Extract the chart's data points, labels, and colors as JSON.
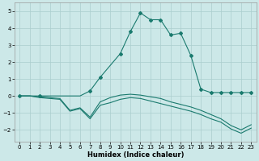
{
  "title": "",
  "xlabel": "Humidex (Indice chaleur)",
  "bg_color": "#cce8e8",
  "grid_color": "#aacece",
  "line_color": "#1a7a6e",
  "xlim": [
    -0.5,
    23.5
  ],
  "ylim": [
    -2.7,
    5.5
  ],
  "xticks": [
    0,
    1,
    2,
    3,
    4,
    5,
    6,
    7,
    8,
    9,
    10,
    11,
    12,
    13,
    14,
    15,
    16,
    17,
    18,
    19,
    20,
    21,
    22,
    23
  ],
  "yticks": [
    -2,
    -1,
    0,
    1,
    2,
    3,
    4,
    5
  ],
  "line1_x": [
    0,
    1,
    2,
    3,
    4,
    5,
    6,
    7,
    8,
    9,
    10,
    11,
    12,
    13,
    14,
    15,
    16,
    17,
    18,
    19,
    20,
    21,
    22,
    23
  ],
  "line1_y": [
    0.0,
    0.0,
    -0.1,
    -0.15,
    -0.2,
    -0.9,
    -0.75,
    -1.35,
    -0.55,
    -0.4,
    -0.2,
    -0.1,
    -0.15,
    -0.3,
    -0.45,
    -0.6,
    -0.75,
    -0.9,
    -1.1,
    -1.35,
    -1.55,
    -1.95,
    -2.2,
    -1.9
  ],
  "line2_x": [
    0,
    1,
    2,
    3,
    4,
    5,
    6,
    7,
    8,
    9,
    10,
    11,
    12,
    13,
    14,
    15,
    16,
    17,
    18,
    19,
    20,
    21,
    22,
    23
  ],
  "line2_y": [
    0.0,
    0.0,
    -0.05,
    -0.1,
    -0.15,
    -0.85,
    -0.7,
    -1.25,
    -0.35,
    -0.1,
    0.05,
    0.1,
    0.05,
    -0.05,
    -0.15,
    -0.35,
    -0.5,
    -0.65,
    -0.85,
    -1.1,
    -1.35,
    -1.75,
    -2.0,
    -1.7
  ],
  "line3_x": [
    0,
    1,
    2,
    3,
    4,
    5,
    6,
    7,
    8,
    10,
    11,
    12,
    13,
    14,
    15,
    16,
    17,
    18,
    19,
    20,
    21,
    22,
    23
  ],
  "line3_y": [
    0.0,
    0.0,
    0.0,
    0.0,
    0.0,
    0.0,
    0.0,
    0.3,
    1.1,
    2.5,
    3.8,
    4.9,
    4.5,
    4.5,
    3.6,
    3.7,
    2.4,
    0.4,
    0.2,
    0.2,
    0.2,
    0.2,
    0.2
  ],
  "markers_x3": [
    0,
    2,
    7,
    8,
    10,
    11,
    12,
    13,
    14,
    15,
    16,
    17,
    18,
    19,
    20,
    21,
    22,
    23
  ],
  "markers_y3": [
    0.0,
    0.0,
    0.3,
    1.1,
    2.5,
    3.8,
    4.9,
    4.5,
    4.5,
    3.6,
    3.7,
    2.4,
    0.4,
    0.2,
    0.2,
    0.2,
    0.2,
    0.2
  ],
  "tick_fontsize": 5.0,
  "xlabel_fontsize": 6.0
}
